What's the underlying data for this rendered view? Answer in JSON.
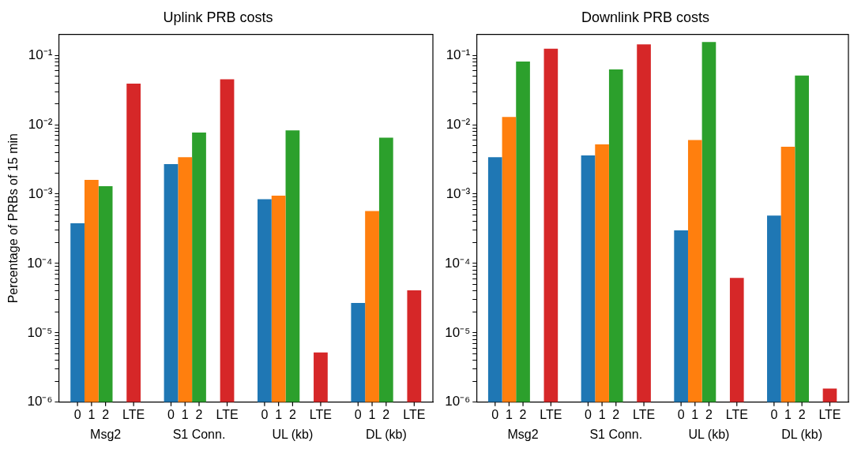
{
  "chart_data": [
    {
      "type": "bar",
      "title": "Uplink PRB costs",
      "ylabel": "Percentage of PRBs of 15 min",
      "log": true,
      "legend": false,
      "grid": false,
      "categories": [
        "Msg2",
        "S1 Conn.",
        "UL (kb)",
        "DL (kb)"
      ],
      "ylim": [
        1e-06,
        0.2
      ],
      "yticks": [
        {
          "value": 1e-06,
          "label": "10⁻⁶"
        },
        {
          "value": 1e-05,
          "label": "10⁻⁵"
        },
        {
          "value": 0.0001,
          "label": "10⁻⁴"
        },
        {
          "value": 0.001,
          "label": "10⁻³"
        },
        {
          "value": 0.01,
          "label": "10⁻²"
        },
        {
          "value": 0.1,
          "label": "10⁻¹"
        },
        {
          "value": 2e-06,
          "label": null
        },
        {
          "value": 3e-06,
          "label": null
        },
        {
          "value": 4e-06,
          "label": null
        },
        {
          "value": 5e-06,
          "label": null
        },
        {
          "value": 6e-06,
          "label": null
        },
        {
          "value": 7e-06,
          "label": null
        },
        {
          "value": 8e-06,
          "label": null
        },
        {
          "value": 9e-06,
          "label": null
        },
        {
          "value": 2e-05,
          "label": null
        },
        {
          "value": 3e-05,
          "label": null
        },
        {
          "value": 4e-05,
          "label": null
        },
        {
          "value": 5e-05,
          "label": null
        },
        {
          "value": 6e-05,
          "label": null
        },
        {
          "value": 7e-05,
          "label": null
        },
        {
          "value": 8e-05,
          "label": null
        },
        {
          "value": 9e-05,
          "label": null
        },
        {
          "value": 0.0002,
          "label": null
        },
        {
          "value": 0.0003,
          "label": null
        },
        {
          "value": 0.0004,
          "label": null
        },
        {
          "value": 0.0005,
          "label": null
        },
        {
          "value": 0.0006,
          "label": null
        },
        {
          "value": 0.0007,
          "label": null
        },
        {
          "value": 0.0008,
          "label": null
        },
        {
          "value": 0.0009,
          "label": null
        },
        {
          "value": 0.002,
          "label": null
        },
        {
          "value": 0.003,
          "label": null
        },
        {
          "value": 0.004,
          "label": null
        },
        {
          "value": 0.005,
          "label": null
        },
        {
          "value": 0.006,
          "label": null
        },
        {
          "value": 0.007,
          "label": null
        },
        {
          "value": 0.008,
          "label": null
        },
        {
          "value": 0.009,
          "label": null
        },
        {
          "value": 0.02,
          "label": null
        },
        {
          "value": 0.03,
          "label": null
        },
        {
          "value": 0.04,
          "label": null
        },
        {
          "value": 0.05,
          "label": null
        },
        {
          "value": 0.06,
          "label": null
        },
        {
          "value": 0.07,
          "label": null
        },
        {
          "value": 0.08,
          "label": null
        },
        {
          "value": 0.09,
          "label": null
        }
      ],
      "series": [
        {
          "name": "0",
          "color": "#1f77b4",
          "values": [
            0.00038,
            0.0027,
            0.00084,
            2.7e-05
          ]
        },
        {
          "name": "1",
          "color": "#ff7f0e",
          "values": [
            0.0016,
            0.0034,
            0.00095,
            0.00057
          ]
        },
        {
          "name": "2",
          "color": "#2ca02c",
          "values": [
            0.0013,
            0.0077,
            0.0083,
            0.0065
          ]
        },
        {
          "name": "LTE",
          "color": "#d62728",
          "values": [
            0.039,
            0.045,
            5.2e-06,
            4.1e-05
          ]
        }
      ]
    },
    {
      "type": "bar",
      "title": "Downlink PRB costs",
      "log": true,
      "legend": false,
      "grid": false,
      "categories": [
        "Msg2",
        "S1 Conn.",
        "UL (kb)",
        "DL (kb)"
      ],
      "ylim": [
        1e-06,
        0.2
      ],
      "yticks": [
        {
          "value": 1e-06,
          "label": "10⁻⁶"
        },
        {
          "value": 1e-05,
          "label": "10⁻⁵"
        },
        {
          "value": 0.0001,
          "label": "10⁻⁴"
        },
        {
          "value": 0.001,
          "label": "10⁻³"
        },
        {
          "value": 0.01,
          "label": "10⁻²"
        },
        {
          "value": 0.1,
          "label": "10⁻¹"
        },
        {
          "value": 2e-06,
          "label": null
        },
        {
          "value": 3e-06,
          "label": null
        },
        {
          "value": 4e-06,
          "label": null
        },
        {
          "value": 5e-06,
          "label": null
        },
        {
          "value": 6e-06,
          "label": null
        },
        {
          "value": 7e-06,
          "label": null
        },
        {
          "value": 8e-06,
          "label": null
        },
        {
          "value": 9e-06,
          "label": null
        },
        {
          "value": 2e-05,
          "label": null
        },
        {
          "value": 3e-05,
          "label": null
        },
        {
          "value": 4e-05,
          "label": null
        },
        {
          "value": 5e-05,
          "label": null
        },
        {
          "value": 6e-05,
          "label": null
        },
        {
          "value": 7e-05,
          "label": null
        },
        {
          "value": 8e-05,
          "label": null
        },
        {
          "value": 9e-05,
          "label": null
        },
        {
          "value": 0.0002,
          "label": null
        },
        {
          "value": 0.0003,
          "label": null
        },
        {
          "value": 0.0004,
          "label": null
        },
        {
          "value": 0.0005,
          "label": null
        },
        {
          "value": 0.0006,
          "label": null
        },
        {
          "value": 0.0007,
          "label": null
        },
        {
          "value": 0.0008,
          "label": null
        },
        {
          "value": 0.0009,
          "label": null
        },
        {
          "value": 0.002,
          "label": null
        },
        {
          "value": 0.003,
          "label": null
        },
        {
          "value": 0.004,
          "label": null
        },
        {
          "value": 0.005,
          "label": null
        },
        {
          "value": 0.006,
          "label": null
        },
        {
          "value": 0.007,
          "label": null
        },
        {
          "value": 0.008,
          "label": null
        },
        {
          "value": 0.009,
          "label": null
        },
        {
          "value": 0.02,
          "label": null
        },
        {
          "value": 0.03,
          "label": null
        },
        {
          "value": 0.04,
          "label": null
        },
        {
          "value": 0.05,
          "label": null
        },
        {
          "value": 0.06,
          "label": null
        },
        {
          "value": 0.07,
          "label": null
        },
        {
          "value": 0.08,
          "label": null
        },
        {
          "value": 0.09,
          "label": null
        }
      ],
      "series": [
        {
          "name": "0",
          "color": "#1f77b4",
          "values": [
            0.0034,
            0.0036,
            0.0003,
            0.00049
          ]
        },
        {
          "name": "1",
          "color": "#ff7f0e",
          "values": [
            0.0129,
            0.0052,
            0.006,
            0.0048
          ]
        },
        {
          "name": "2",
          "color": "#2ca02c",
          "values": [
            0.081,
            0.0625,
            0.155,
            0.051
          ]
        },
        {
          "name": "LTE",
          "color": "#d62728",
          "values": [
            0.124,
            0.144,
            6.2e-05,
            1.57e-06
          ]
        }
      ]
    }
  ]
}
